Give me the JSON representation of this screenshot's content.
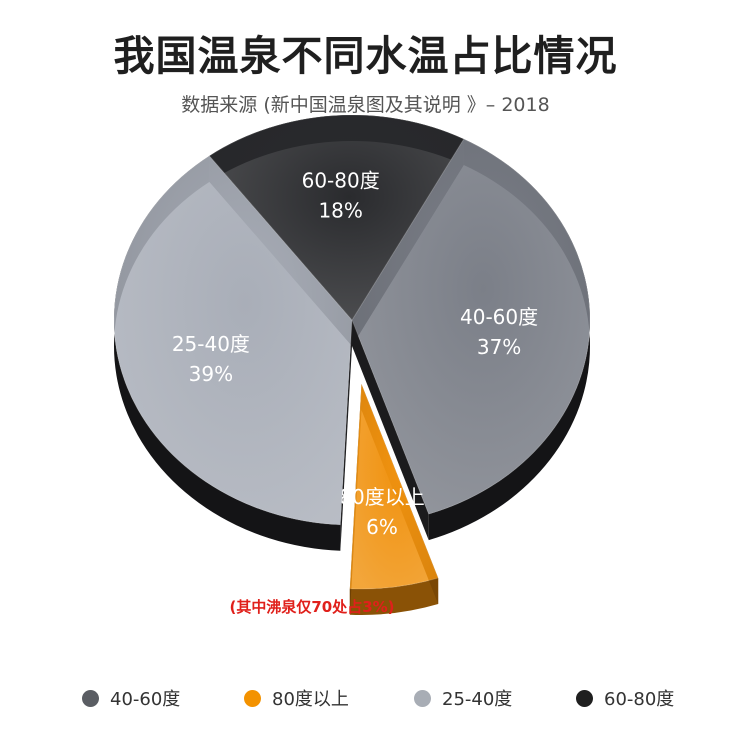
{
  "header": {
    "title": "我国温泉不同水温占比情况",
    "subtitle": "数据来源 (新中国温泉图及其说明 》– 2018"
  },
  "colors": {
    "c40_60": "#7b7f88",
    "c80": "#f0920f",
    "c25_40": "#a9aeb8",
    "c60_80": "#2a2b2e",
    "legend_40_60": "#5a5d63",
    "legend_80": "#f39200",
    "legend_25_40": "#a8adb5",
    "legend_60_80": "#1f1f1f",
    "annotation": "#e0201b"
  },
  "chart_data": {
    "type": "pie",
    "title": "我国温泉不同水温占比情况",
    "subtitle": "数据来源 (新中国温泉图及其说明 》– 2018",
    "slices": [
      {
        "label": "40-60度",
        "value": 37,
        "value_label": "37%",
        "exploded": false
      },
      {
        "label": "80度以上",
        "value": 6,
        "value_label": "6%",
        "exploded": true
      },
      {
        "label": "25-40度",
        "value": 39,
        "value_label": "39%",
        "exploded": false
      },
      {
        "label": "60-80度",
        "value": 18,
        "value_label": "18%",
        "exploded": false
      }
    ],
    "annotation": "(其中沸泉仅70处占3%)",
    "legend_position": "bottom",
    "style": "3d-tilted"
  },
  "legend": [
    {
      "label": "40-60度",
      "color_key": "legend_40_60"
    },
    {
      "label": "80度以上",
      "color_key": "legend_80"
    },
    {
      "label": "25-40度",
      "color_key": "legend_25_40"
    },
    {
      "label": "60-80度",
      "color_key": "legend_60_80"
    }
  ]
}
